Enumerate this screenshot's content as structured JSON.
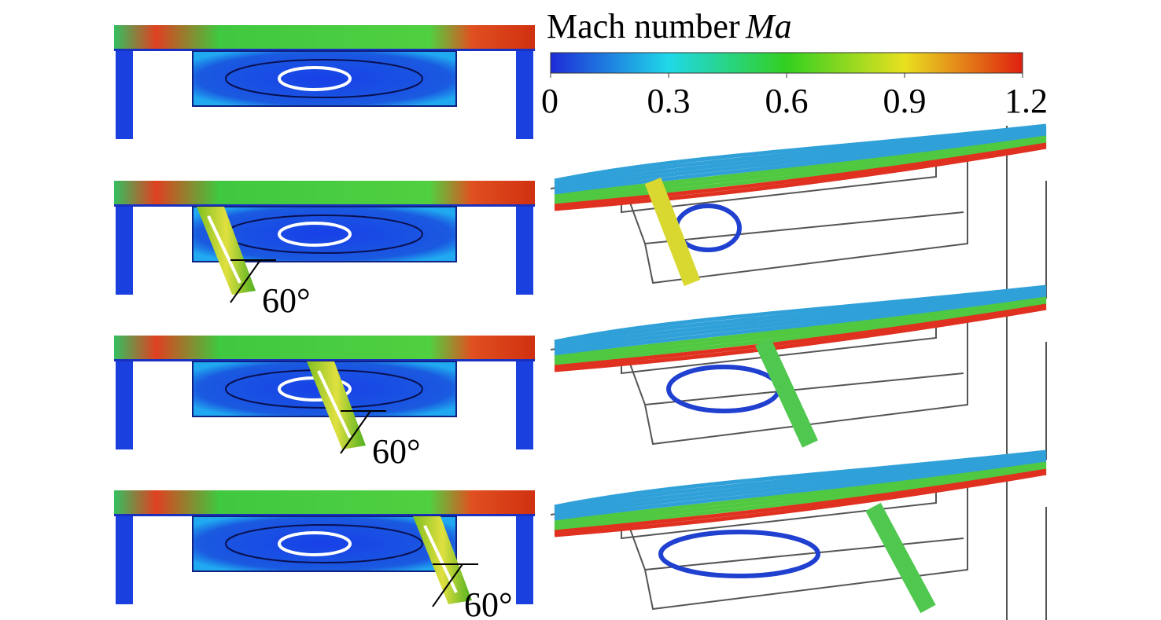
{
  "colorbar": {
    "title": "Mach number",
    "symbol": "Ma",
    "lim": [
      0,
      1.2
    ],
    "ticks": [
      0,
      0.3,
      0.6,
      0.9,
      1.2
    ],
    "colormap": [
      "#1e2bd8",
      "#1fd8e8",
      "#33d020",
      "#e8e020",
      "#e02010"
    ]
  },
  "panels": [
    {
      "angle_label": null
    },
    {
      "angle_label": "60°"
    },
    {
      "angle_label": "60°"
    },
    {
      "angle_label": "60°"
    }
  ]
}
